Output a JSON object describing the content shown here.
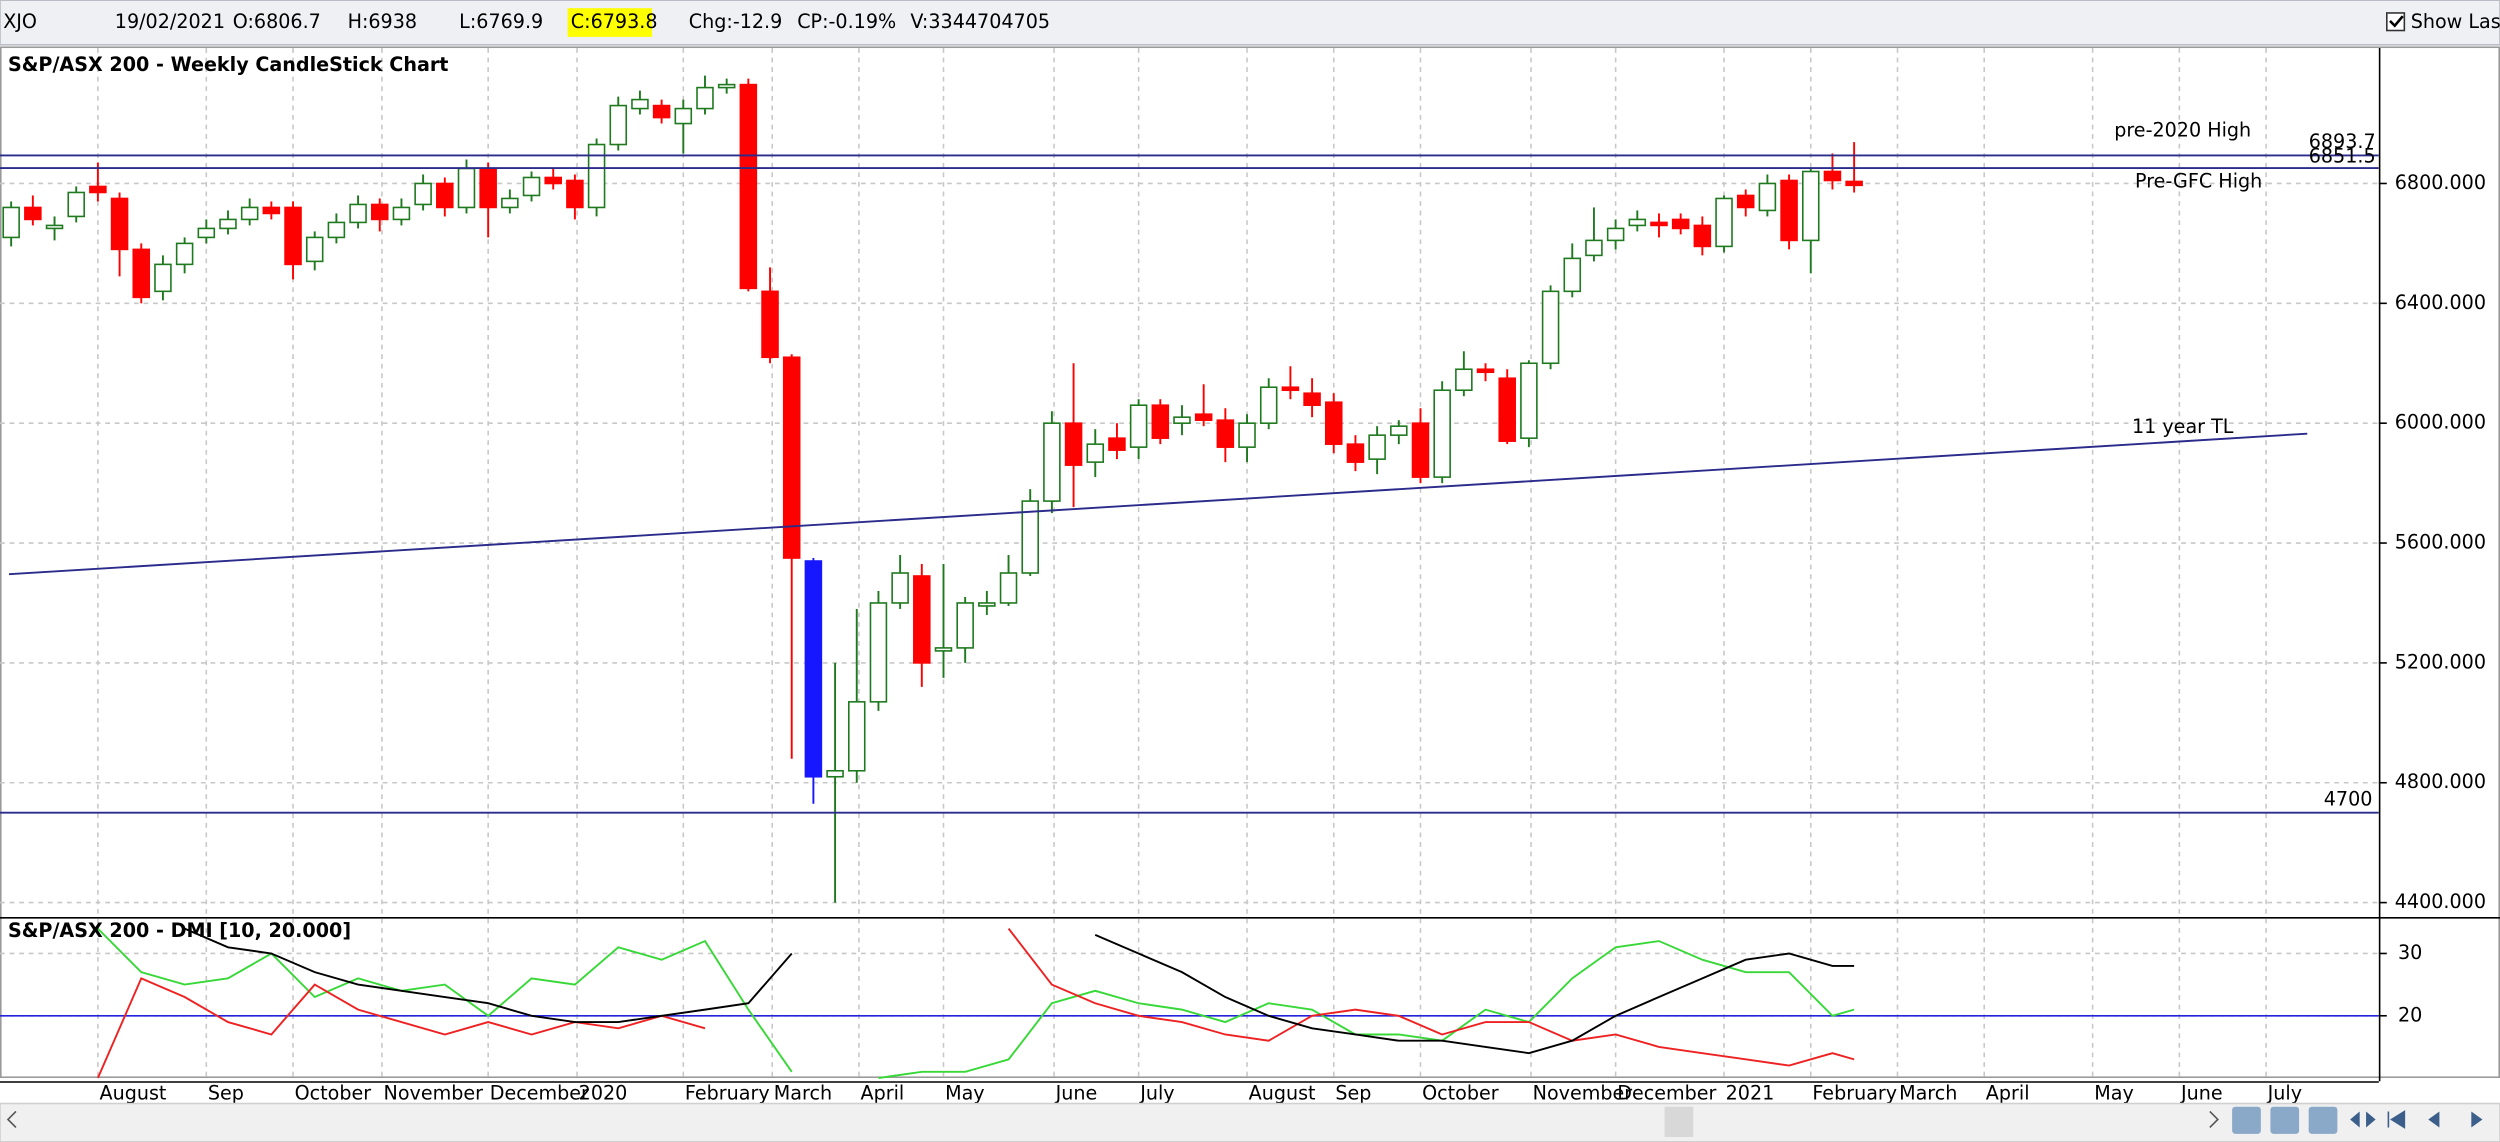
{
  "header": {
    "symbol": "XJO",
    "date": "19/02/2021",
    "open": "O:6806.7",
    "high": "H:6938",
    "low": "L:6769.9",
    "close": "C:6793.8",
    "change": "Chg:-12.9",
    "change_pct": "CP:-0.19%",
    "volume": "V:3344704705",
    "show_last": "Show Last"
  },
  "chart_data": [
    {
      "type": "candlestick",
      "title": "S&P/ASX 200 - Weekly CandleStick Chart",
      "open": [
        6620,
        6720,
        6650,
        6690,
        6790,
        6750,
        6580,
        6440,
        6530,
        6620,
        6650,
        6680,
        6720,
        6720,
        6540,
        6620,
        6670,
        6730,
        6680,
        6730,
        6800,
        6720,
        6850,
        6720,
        6760,
        6820,
        6810,
        6720,
        6930,
        7050,
        7060,
        7000,
        7050,
        7120,
        7130,
        6440,
        6220,
        5540,
        4820,
        4840,
        5070,
        5400,
        5490,
        5240,
        5250,
        5390,
        5400,
        5500,
        5740,
        6000,
        5870,
        5950,
        5920,
        6060,
        6000,
        6030,
        6010,
        5920,
        6000,
        6120,
        6100,
        6070,
        5930,
        5880,
        5960,
        6000,
        5820,
        6110,
        6180,
        6150,
        5950,
        6200,
        6440,
        6560,
        6610,
        6660,
        6670,
        6680,
        6660,
        6590,
        6760,
        6710,
        6810,
        6610,
        6840,
        6806.7
      ],
      "high": [
        6740,
        6760,
        6690,
        6790,
        6870,
        6770,
        6600,
        6560,
        6620,
        6680,
        6710,
        6750,
        6740,
        6740,
        6640,
        6700,
        6760,
        6750,
        6750,
        6830,
        6820,
        6880,
        6870,
        6780,
        6840,
        6850,
        6830,
        6950,
        7090,
        7110,
        7080,
        7080,
        7160,
        7150,
        7150,
        6520,
        6230,
        5550,
        5200,
        5380,
        5440,
        5560,
        5530,
        5530,
        5420,
        5440,
        5560,
        5780,
        6040,
        6200,
        5980,
        6000,
        6080,
        6080,
        6060,
        6130,
        6050,
        6030,
        6150,
        6190,
        6150,
        6100,
        5960,
        5990,
        6010,
        6050,
        6140,
        6240,
        6200,
        6180,
        6210,
        6460,
        6600,
        6720,
        6680,
        6710,
        6700,
        6700,
        6690,
        6760,
        6780,
        6830,
        6830,
        6850,
        6900,
        6938
      ],
      "low": [
        6590,
        6660,
        6610,
        6670,
        6740,
        6490,
        6400,
        6410,
        6500,
        6600,
        6630,
        6660,
        6680,
        6480,
        6510,
        6600,
        6650,
        6640,
        6660,
        6710,
        6690,
        6700,
        6620,
        6700,
        6740,
        6780,
        6680,
        6690,
        6910,
        7030,
        7000,
        6900,
        7030,
        7100,
        6440,
        6200,
        4880,
        4730,
        4400,
        4800,
        5040,
        5380,
        5120,
        5150,
        5200,
        5360,
        5390,
        5490,
        5700,
        5720,
        5820,
        5880,
        5880,
        5930,
        5960,
        5990,
        5870,
        5870,
        5980,
        6080,
        6020,
        5900,
        5840,
        5830,
        5930,
        5800,
        5800,
        6090,
        6140,
        5930,
        5920,
        6180,
        6420,
        6540,
        6580,
        6640,
        6620,
        6630,
        6560,
        6570,
        6690,
        6690,
        6580,
        6500,
        6780,
        6769.9
      ],
      "close": [
        6720,
        6680,
        6660,
        6770,
        6770,
        6580,
        6420,
        6530,
        6600,
        6650,
        6680,
        6720,
        6700,
        6530,
        6620,
        6670,
        6730,
        6680,
        6720,
        6800,
        6720,
        6850,
        6720,
        6750,
        6820,
        6800,
        6720,
        6930,
        7060,
        7080,
        7020,
        7050,
        7120,
        7130,
        6450,
        6220,
        5550,
        4820,
        4840,
        5070,
        5400,
        5500,
        5200,
        5250,
        5400,
        5400,
        5500,
        5740,
        6000,
        5860,
        5930,
        5910,
        6060,
        5950,
        6020,
        6010,
        5920,
        6000,
        6120,
        6110,
        6060,
        5930,
        5870,
        5960,
        5990,
        5820,
        6110,
        6180,
        6170,
        5940,
        6200,
        6440,
        6550,
        6610,
        6650,
        6680,
        6660,
        6650,
        6590,
        6750,
        6720,
        6800,
        6610,
        6840,
        6810,
        6793.8
      ],
      "up_color": "#ffffff",
      "up_edge_color": "#1f7a1f",
      "down_color": "#ff0000",
      "highlight_candles": [
        37
      ],
      "highlight_color": "#1717ff",
      "ylim": [
        4352,
        7252
      ],
      "yticks": [
        {
          "value": 4400,
          "label": "4400.000"
        },
        {
          "value": 4800,
          "label": "4800.000"
        },
        {
          "value": 5200,
          "label": "5200.000"
        },
        {
          "value": 5600,
          "label": "5600.000"
        },
        {
          "value": 6000,
          "label": "6000.000"
        },
        {
          "value": 6400,
          "label": "6400.000"
        },
        {
          "value": 6800,
          "label": "6800.000"
        }
      ],
      "levels": [
        6893.7,
        6851.5,
        4700
      ],
      "level_color": "#2b2b8c",
      "trendline": {
        "x": [
          -0.1,
          105.9
        ],
        "values": [
          5496,
          5965
        ]
      },
      "annotations": [
        "pre-2020 High",
        "Pre-GFC High",
        "11 year TL"
      ],
      "grid": true
    },
    {
      "type": "line",
      "title": "S&P/ASX 200 - DMI [10, 20.000]",
      "x": [
        0,
        2,
        4,
        6,
        8,
        10,
        12,
        14,
        16,
        18,
        20,
        22,
        24,
        26,
        28,
        30,
        32,
        34,
        36,
        38,
        40,
        42,
        44,
        46,
        48,
        50,
        52,
        54,
        56,
        58,
        60,
        62,
        64,
        66,
        68,
        70,
        72,
        74,
        76,
        78,
        80,
        82,
        84,
        85
      ],
      "series": [
        {
          "name": "+DI",
          "color": "#38d838",
          "values": [
            null,
            null,
            34,
            27,
            25,
            26,
            30,
            23,
            26,
            24,
            25,
            20,
            26,
            25,
            31,
            29,
            32,
            21,
            11,
            null,
            10,
            11,
            11,
            13,
            22,
            24,
            22,
            21,
            19,
            22,
            21,
            17,
            17,
            16,
            21,
            19,
            26,
            31,
            32,
            29,
            27,
            27,
            20,
            21
          ]
        },
        {
          "name": "-DI",
          "color": "#ee2222",
          "values": [
            null,
            null,
            10,
            26,
            23,
            19,
            17,
            25,
            21,
            19,
            17,
            19,
            17,
            19,
            18,
            20,
            18,
            null,
            null,
            null,
            null,
            null,
            null,
            34,
            25,
            22,
            20,
            19,
            17,
            16,
            20,
            21,
            20,
            17,
            19,
            19,
            16,
            17,
            15,
            14,
            13,
            12,
            14,
            13
          ]
        },
        {
          "name": "ADX",
          "color": "#000000",
          "values": [
            null,
            null,
            null,
            null,
            34,
            31,
            30,
            27,
            25,
            24,
            23,
            22,
            20,
            19,
            19,
            20,
            21,
            22,
            30,
            null,
            null,
            null,
            null,
            null,
            null,
            33,
            30,
            27,
            23,
            20,
            18,
            17,
            16,
            16,
            15,
            14,
            16,
            20,
            23,
            26,
            29,
            30,
            28,
            28
          ]
        }
      ],
      "reference_line": 20,
      "reference_color": "#2424dd",
      "xlim": [
        -0.515,
        109.2
      ],
      "xticks": [
        {
          "value": 4.0,
          "label": "August"
        },
        {
          "value": 9.0,
          "label": "Sep"
        },
        {
          "value": 13.0,
          "label": "October"
        },
        {
          "value": 17.1,
          "label": "November"
        },
        {
          "value": 22.0,
          "label": "December"
        },
        {
          "value": 26.1,
          "label": "2020"
        },
        {
          "value": 31.0,
          "label": "February"
        },
        {
          "value": 35.1,
          "label": "March"
        },
        {
          "value": 39.1,
          "label": "April"
        },
        {
          "value": 43.0,
          "label": "May"
        },
        {
          "value": 48.1,
          "label": "June"
        },
        {
          "value": 52.0,
          "label": "July"
        },
        {
          "value": 57.0,
          "label": "August"
        },
        {
          "value": 61.0,
          "label": "Sep"
        },
        {
          "value": 65.0,
          "label": "October"
        },
        {
          "value": 70.1,
          "label": "November"
        },
        {
          "value": 74.0,
          "label": "December"
        },
        {
          "value": 79.0,
          "label": "2021"
        },
        {
          "value": 83.0,
          "label": "February"
        },
        {
          "value": 87.0,
          "label": "March"
        },
        {
          "value": 91.0,
          "label": "April"
        },
        {
          "value": 96.0,
          "label": "May"
        },
        {
          "value": 100.0,
          "label": "June"
        },
        {
          "value": 104.0,
          "label": "July"
        }
      ],
      "ylim": [
        9.5,
        35.6
      ],
      "yticks": [
        20,
        30
      ],
      "grid": true
    }
  ]
}
